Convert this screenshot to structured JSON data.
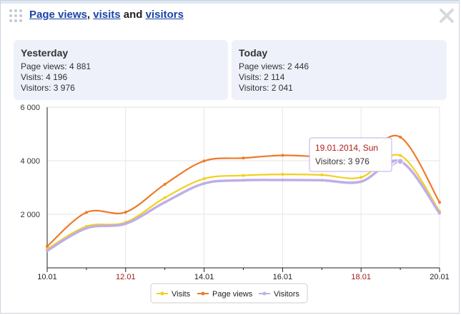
{
  "header": {
    "link_page_views": "Page views",
    "comma": ",",
    "link_visits": "visits",
    "and_text": "and",
    "link_visitors": "visitors"
  },
  "cards": {
    "yesterday": {
      "title": "Yesterday",
      "page_views": "Page views: 4 881",
      "visits": "Visits: 4 196",
      "visitors": "Visitors: 3 976"
    },
    "today": {
      "title": "Today",
      "page_views": "Page views: 2 446",
      "visits": "Visits: 2 114",
      "visitors": "Visitors: 2 041"
    }
  },
  "tooltip": {
    "date": "19.01.2014, Sun",
    "value": "Visitors: 3 976",
    "point_index": 9
  },
  "colors": {
    "visits": "#f2d01e",
    "page_views": "#ee7a2a",
    "visitors": "#bfaee8",
    "weekend_label": "#a01818",
    "tooltip_border": "#bfaee8",
    "tooltip_date": "#b01c1c"
  },
  "chart_data": {
    "type": "line",
    "x": [
      "10.01",
      "11.01",
      "12.01",
      "13.01",
      "14.01",
      "15.01",
      "16.01",
      "17.01",
      "18.01",
      "19.01",
      "20.01"
    ],
    "x_tick_labels": [
      {
        "label": "10.01",
        "index": 0,
        "weekend": false
      },
      {
        "label": "12.01",
        "index": 2,
        "weekend": true
      },
      {
        "label": "14.01",
        "index": 4,
        "weekend": false
      },
      {
        "label": "16.01",
        "index": 6,
        "weekend": false
      },
      {
        "label": "18.01",
        "index": 8,
        "weekend": true
      },
      {
        "label": "20.01",
        "index": 10,
        "weekend": false
      }
    ],
    "ylim": [
      0,
      6000
    ],
    "y_ticks": [
      {
        "value": 2000,
        "label": "2 000"
      },
      {
        "value": 4000,
        "label": "4 000"
      },
      {
        "value": 6000,
        "label": "6 000"
      }
    ],
    "grid": true,
    "legend_position": "bottom",
    "series": [
      {
        "name": "Visits",
        "key": "visits",
        "values": [
          700,
          1550,
          1700,
          2620,
          3330,
          3450,
          3490,
          3470,
          3380,
          4196,
          2114
        ]
      },
      {
        "name": "Page views",
        "key": "page_views",
        "values": [
          800,
          2070,
          2080,
          3120,
          3990,
          4100,
          4200,
          4150,
          4150,
          4881,
          2446
        ]
      },
      {
        "name": "Visitors",
        "key": "visitors",
        "values": [
          640,
          1480,
          1650,
          2450,
          3150,
          3270,
          3280,
          3270,
          3220,
          3976,
          2041
        ]
      }
    ]
  }
}
